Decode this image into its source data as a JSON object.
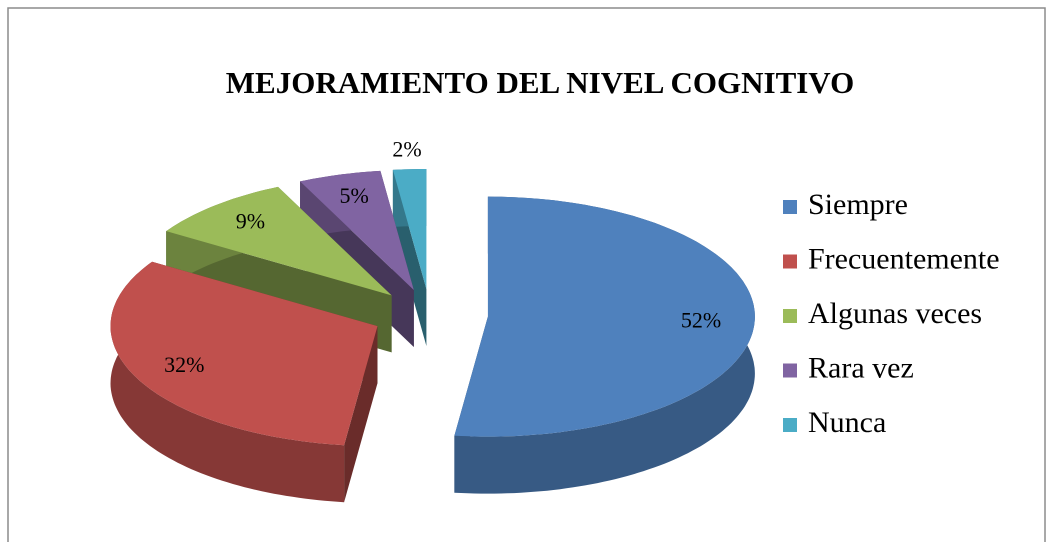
{
  "chart_data": {
    "type": "pie",
    "title": "MEJORAMIENTO DEL NIVEL COGNITIVO",
    "categories": [
      "Siempre",
      "Frecuentemente",
      "Algunas veces",
      "Rara vez",
      "Nunca"
    ],
    "values": [
      52,
      32,
      9,
      5,
      2
    ],
    "value_labels": [
      "52%",
      "32%",
      "9%",
      "5%",
      "2%"
    ],
    "colors": [
      "#4f81bd",
      "#c0504d",
      "#9bbb59",
      "#8064a2",
      "#4bacc6"
    ],
    "legend": "right"
  }
}
